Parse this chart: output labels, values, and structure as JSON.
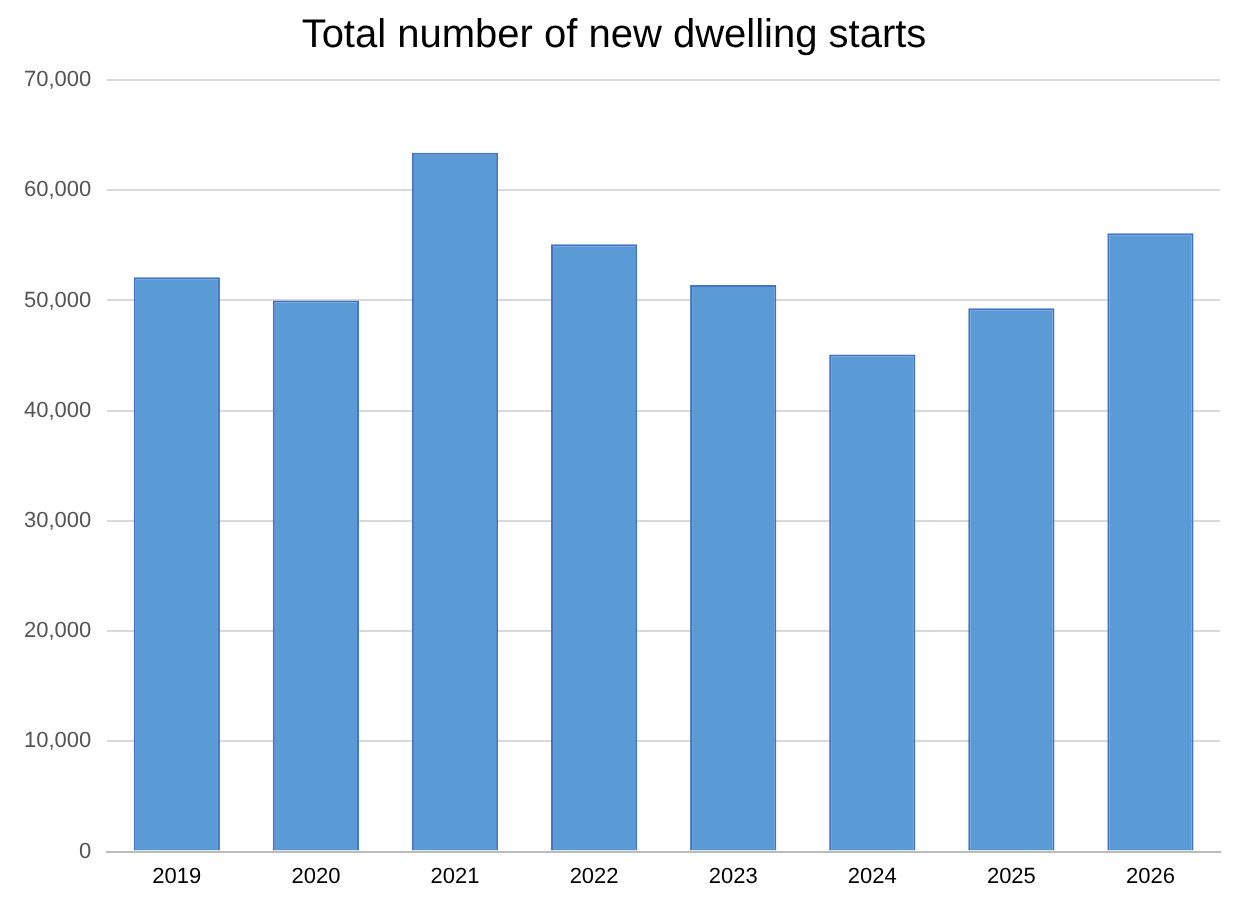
{
  "chart_data": {
    "type": "bar",
    "title": "Total number of new dwelling starts",
    "categories": [
      "2019",
      "2020",
      "2021",
      "2022",
      "2023",
      "2024",
      "2025",
      "2026"
    ],
    "values": [
      52100,
      50000,
      63400,
      55100,
      51400,
      45100,
      49300,
      56100
    ],
    "color": "#5b9bd5",
    "ylim": [
      0,
      70000
    ],
    "yticks": [
      {
        "value": 0,
        "label": "0"
      },
      {
        "value": 10000,
        "label": "10,000"
      },
      {
        "value": 20000,
        "label": "20,000"
      },
      {
        "value": 30000,
        "label": "30,000"
      },
      {
        "value": 40000,
        "label": "40,000"
      },
      {
        "value": 50000,
        "label": "50,000"
      },
      {
        "value": 60000,
        "label": "60,000"
      },
      {
        "value": 70000,
        "label": "70,000"
      }
    ],
    "grid": "y"
  }
}
